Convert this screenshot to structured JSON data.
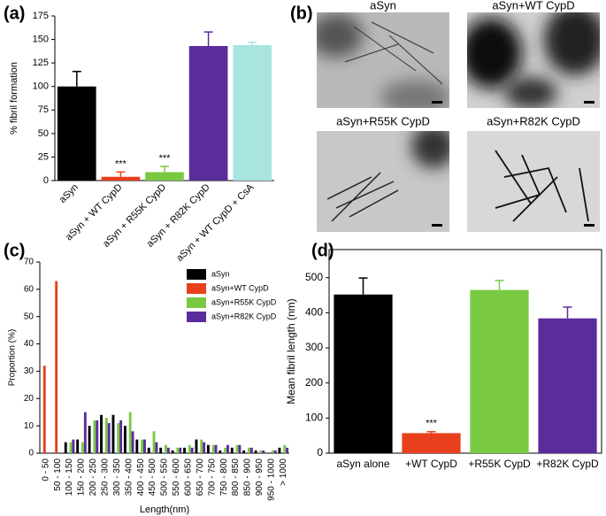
{
  "panel_labels": [
    "(a)",
    "(b)",
    "(c)",
    "(d)"
  ],
  "micrographs": {
    "titles": [
      "aSyn",
      "aSyn+WT CypD",
      "aSyn+R55K CypD",
      "aSyn+R82K CypD"
    ]
  },
  "chart_data": [
    {
      "type": "bar",
      "ylabel": "% fibril formation",
      "categories": [
        "aSyn",
        "aSyn + WT CypD",
        "aSyn + R55K CypD",
        "aSyn + R82K CypD",
        "aSyn + WT CypD + CsA"
      ],
      "values": [
        100,
        4,
        9,
        143,
        144
      ],
      "errors": [
        16,
        5,
        6,
        15,
        3
      ],
      "colors": [
        "#000000",
        "#e8401c",
        "#7ac943",
        "#5b2c9b",
        "#a8e4e0"
      ],
      "annotations": [
        {
          "category": "aSyn + WT CypD",
          "text": "***"
        },
        {
          "category": "aSyn + R55K CypD",
          "text": "***"
        }
      ],
      "ylim": [
        0,
        175
      ],
      "yticks": [
        0,
        25,
        50,
        75,
        100,
        125,
        150,
        175
      ]
    },
    {
      "type": "grouped_bar",
      "xlabel": "Length(nm)",
      "ylabel": "Proportion (%)",
      "categories": [
        "0 - 50",
        "50 - 100",
        "100 - 150",
        "150 - 200",
        "200 - 250",
        "250 - 300",
        "300 - 350",
        "350 - 400",
        "400 - 450",
        "450 - 500",
        "500 - 550",
        "550 - 600",
        "600 - 650",
        "650 - 700",
        "700 - 750",
        "750 - 800",
        "800 - 850",
        "850 - 900",
        "900 - 950",
        "950 - 1000",
        "> 1000"
      ],
      "series": [
        {
          "name": "aSyn",
          "color": "#000000",
          "values": [
            0,
            0,
            4,
            5,
            10,
            14,
            14,
            10,
            5,
            2,
            2,
            1,
            2,
            5,
            3,
            1,
            2,
            1,
            1,
            0,
            2
          ]
        },
        {
          "name": "aSyn+WT CypD",
          "color": "#e8401c",
          "values": [
            32,
            63,
            0,
            0,
            0,
            0,
            0,
            0,
            0,
            0,
            0,
            0,
            0,
            0,
            0,
            0,
            0,
            0,
            0,
            0,
            0
          ]
        },
        {
          "name": "aSyn+R55K CypD",
          "color": "#7ac943",
          "values": [
            0,
            0,
            4,
            4,
            12,
            13,
            11,
            15,
            5,
            8,
            3,
            2,
            3,
            5,
            3,
            2,
            3,
            2,
            1,
            1,
            3
          ]
        },
        {
          "name": "aSyn+R82K CypD",
          "color": "#5b2c9b",
          "values": [
            0,
            0,
            5,
            15,
            12,
            11,
            12,
            8,
            5,
            4,
            2,
            2,
            2,
            4,
            3,
            3,
            3,
            2,
            1,
            1,
            2
          ]
        }
      ],
      "legend": "upper right",
      "ylim": [
        0,
        70
      ],
      "yticks": [
        0,
        10,
        20,
        30,
        40,
        50,
        60,
        70
      ]
    },
    {
      "type": "bar",
      "ylabel": "Mean fibril length (nm)",
      "categories": [
        "aSyn alone",
        "+WT CypD",
        "+R55K CypD",
        "+R82K CypD"
      ],
      "values": [
        452,
        57,
        465,
        384
      ],
      "errors": [
        47,
        4,
        27,
        32
      ],
      "colors": [
        "#000000",
        "#e8401c",
        "#7ac943",
        "#5b2c9b"
      ],
      "annotations": [
        {
          "category": "+WT CypD",
          "text": "***"
        }
      ],
      "ylim": [
        0,
        580
      ],
      "yticks": [
        0,
        100,
        200,
        300,
        400,
        500
      ]
    }
  ]
}
